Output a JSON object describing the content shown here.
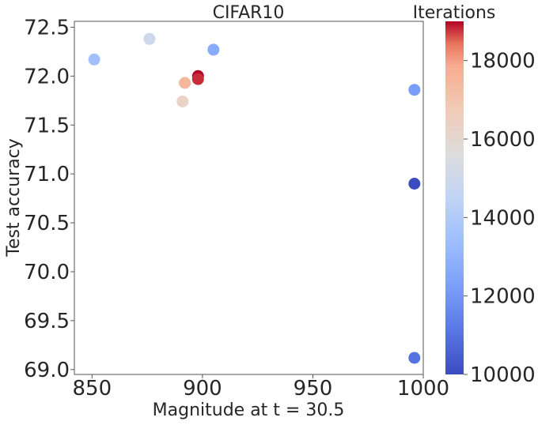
{
  "chart_data": {
    "type": "scatter",
    "title": "CIFAR10",
    "xlabel": "Magnitude at t = 30.5",
    "ylabel": "Test accuracy",
    "xlim": [
      842,
      1000
    ],
    "ylim": [
      68.95,
      72.56
    ],
    "xticks": [
      850,
      900,
      950,
      1000
    ],
    "yticks": [
      69.0,
      69.5,
      70.0,
      70.5,
      71.0,
      71.5,
      72.0,
      72.5
    ],
    "grid": false,
    "colorbar": {
      "label": "Iterations",
      "colormap": "coolwarm",
      "range": [
        10000,
        19000
      ],
      "ticks": [
        10000,
        12000,
        14000,
        16000,
        18000
      ]
    },
    "points": [
      {
        "x": 851,
        "y": 72.17,
        "c": 13500
      },
      {
        "x": 876,
        "y": 72.38,
        "c": 15000
      },
      {
        "x": 905,
        "y": 72.27,
        "c": 12700
      },
      {
        "x": 898,
        "y": 72.0,
        "c": 19000
      },
      {
        "x": 898,
        "y": 71.97,
        "c": 18800
      },
      {
        "x": 892,
        "y": 71.93,
        "c": 17500
      },
      {
        "x": 891,
        "y": 71.74,
        "c": 16300
      },
      {
        "x": 996,
        "y": 71.86,
        "c": 12200
      },
      {
        "x": 996,
        "y": 70.9,
        "c": 10000
      },
      {
        "x": 996,
        "y": 69.12,
        "c": 11000
      }
    ]
  }
}
